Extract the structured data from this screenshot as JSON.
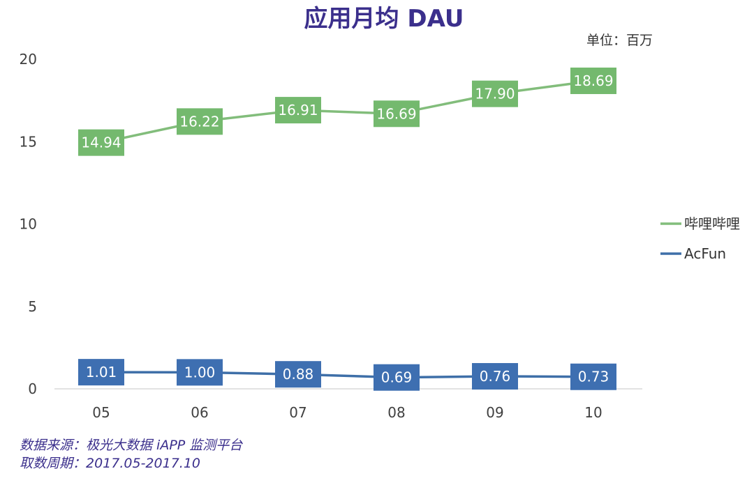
{
  "chart_data": {
    "type": "line",
    "title": "应用月均 DAU",
    "unit_label": "单位：百万",
    "categories": [
      "05",
      "06",
      "07",
      "08",
      "09",
      "10"
    ],
    "ylim": [
      0,
      20
    ],
    "yticks": [
      "0",
      "5",
      "10",
      "15",
      "20"
    ],
    "grid": false,
    "legend_position": "right",
    "series": [
      {
        "name": "哔哩哔哩",
        "color": "#82bd7b",
        "label_bg": "#74b96e",
        "values": [
          14.94,
          16.22,
          16.91,
          16.69,
          17.9,
          18.69
        ],
        "labels": [
          "14.94",
          "16.22",
          "16.91",
          "16.69",
          "17.90",
          "18.69"
        ]
      },
      {
        "name": "AcFun",
        "color": "#3e6fa8",
        "label_bg": "#3e6fb1",
        "values": [
          1.01,
          1.0,
          0.88,
          0.69,
          0.76,
          0.73
        ],
        "labels": [
          "1.01",
          "1.00",
          "0.88",
          "0.69",
          "0.76",
          "0.73"
        ]
      }
    ]
  },
  "source": {
    "line1": "数据来源：极光大数据 iAPP 监测平台",
    "line2": "取数周期：2017.05-2017.10"
  }
}
